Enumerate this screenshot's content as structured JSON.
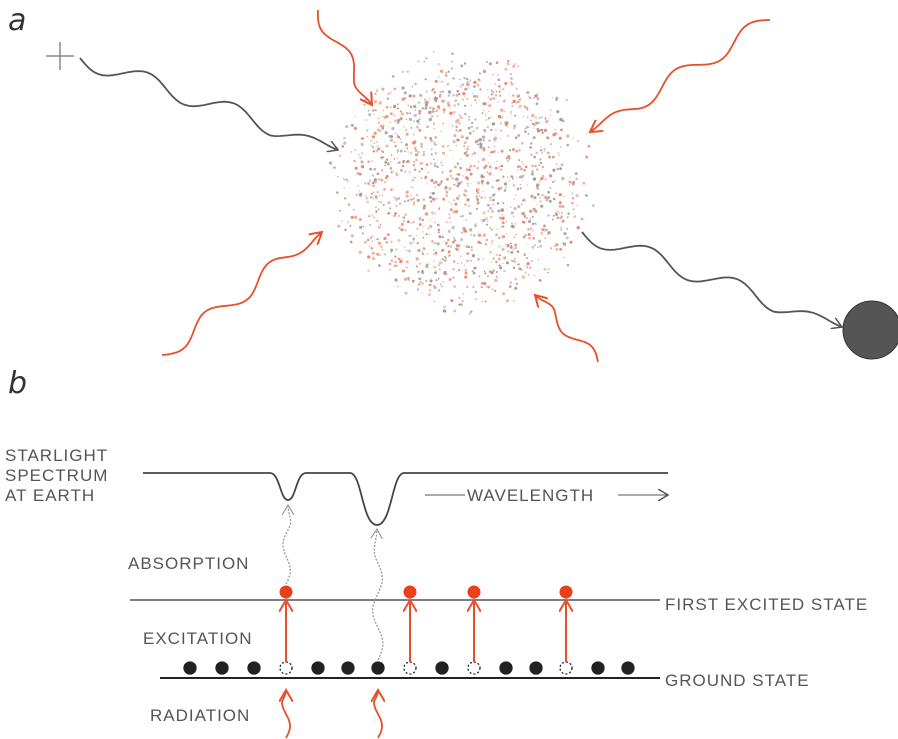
{
  "panel_a": {
    "label": "a"
  },
  "panel_b": {
    "label": "b",
    "spectrum_label": [
      "STARLIGHT",
      "SPECTRUM",
      "AT EARTH"
    ],
    "wavelength_label": "WAVELENGTH",
    "absorption_label": "ABSORPTION",
    "excited_state_label": "FIRST EXCITED STATE",
    "excitation_label": "EXCITATION",
    "ground_state_label": "GROUND STATE",
    "radiation_label": "RADIATION"
  }
}
